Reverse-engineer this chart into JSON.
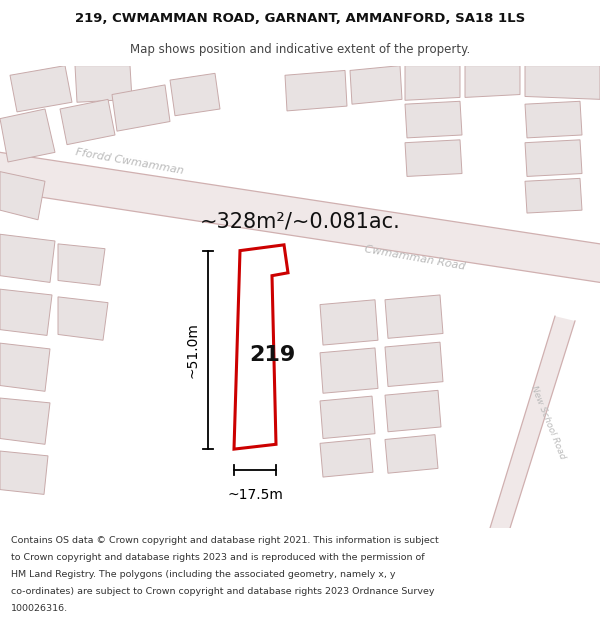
{
  "title_line1": "219, CWMAMMAN ROAD, GARNANT, AMMANFORD, SA18 1LS",
  "title_line2": "Map shows position and indicative extent of the property.",
  "area_text": "~328m²/~0.081ac.",
  "label_219": "219",
  "dim_height": "~51.0m",
  "dim_width": "~17.5m",
  "road_label_ffordd": "Ffordd Cwmamman",
  "road_label_cwm": "Cwmamman Road",
  "road_label_new": "New School Road",
  "footer_lines": [
    "Contains OS data © Crown copyright and database right 2021. This information is subject",
    "to Crown copyright and database rights 2023 and is reproduced with the permission of",
    "HM Land Registry. The polygons (including the associated geometry, namely x, y",
    "co-ordinates) are subject to Crown copyright and database rights 2023 Ordnance Survey",
    "100026316."
  ],
  "bg_color": "#ffffff",
  "map_bg": "#f7f2f2",
  "building_fill": "#e8e2e2",
  "building_edge": "#c8aaaa",
  "highlight_color": "#cc0000",
  "highlight_fill": "#ffffff",
  "road_color": "#f0e8e8",
  "road_edge": "#d0b0b0",
  "road_text_color": "#bbbbbb",
  "dim_color": "#000000",
  "title_fontsize": 9.5,
  "subtitle_fontsize": 8.5,
  "area_fontsize": 15,
  "label_fontsize": 16,
  "dim_fontsize": 10,
  "road_fontsize": 8,
  "footer_fontsize": 6.8
}
